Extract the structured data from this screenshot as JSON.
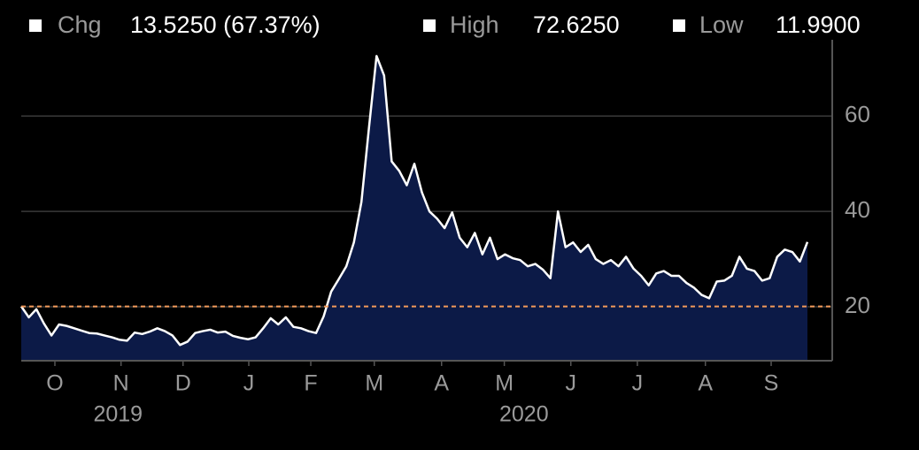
{
  "stats": [
    {
      "label": "Chg",
      "value": "13.5250 (67.37%)"
    },
    {
      "label": "High",
      "value": "72.6250"
    },
    {
      "label": "Low",
      "value": "11.9900"
    }
  ],
  "chart_data": {
    "type": "area",
    "color": "#ffffff",
    "fill_color": "#0c1a47",
    "values": [
      20.1,
      17.8,
      19.5,
      16.5,
      14.0,
      16.3,
      16.0,
      15.5,
      15.0,
      14.5,
      14.4,
      14.0,
      13.6,
      13.1,
      12.9,
      14.6,
      14.3,
      14.8,
      15.5,
      14.9,
      14.0,
      12.0,
      12.7,
      14.5,
      14.9,
      15.2,
      14.6,
      14.8,
      13.9,
      13.5,
      13.2,
      13.6,
      15.5,
      17.6,
      16.3,
      17.8,
      15.8,
      15.5,
      14.9,
      14.5,
      18.0,
      23.2,
      25.8,
      28.5,
      33.5,
      42.0,
      57.6,
      72.6,
      68.5,
      50.5,
      48.5,
      45.5,
      50.0,
      44.0,
      40.0,
      38.5,
      36.5,
      39.8,
      34.5,
      32.5,
      35.5,
      31.0,
      34.5,
      30.0,
      31.0,
      30.2,
      29.8,
      28.5,
      29.0,
      27.8,
      26.0,
      40.0,
      32.5,
      33.5,
      31.5,
      33.0,
      30.0,
      29.0,
      29.8,
      28.5,
      30.5,
      28.0,
      26.5,
      24.5,
      27.0,
      27.5,
      26.5,
      26.5,
      25.0,
      24.0,
      22.5,
      21.8,
      25.3,
      25.5,
      26.5,
      30.5,
      28.0,
      27.5,
      25.5,
      26.0,
      30.5,
      32.0,
      31.5,
      29.5,
      33.6
    ],
    "xlim": [
      0,
      104
    ],
    "xticks": [
      {
        "value": 4.45,
        "label": "O"
      },
      {
        "value": 13.2,
        "label": "N"
      },
      {
        "value": 21.4,
        "label": "D"
      },
      {
        "value": 30.1,
        "label": "J"
      },
      {
        "value": 38.3,
        "label": "F"
      },
      {
        "value": 46.7,
        "label": "M"
      },
      {
        "value": 55.6,
        "label": "A"
      },
      {
        "value": 63.9,
        "label": "M"
      },
      {
        "value": 72.7,
        "label": "J"
      },
      {
        "value": 81.5,
        "label": "J"
      },
      {
        "value": 90.5,
        "label": "A"
      },
      {
        "value": 99.2,
        "label": "S"
      }
    ],
    "year_ticks": [
      {
        "value": 12.8,
        "label": "2019"
      },
      {
        "value": 66.5,
        "label": "2020"
      }
    ],
    "ylim": [
      8.7,
      76
    ],
    "yticks": [
      20,
      40,
      60
    ],
    "grid": true,
    "reference_line": {
      "value": 20.075,
      "color": "#f39a5a"
    }
  }
}
